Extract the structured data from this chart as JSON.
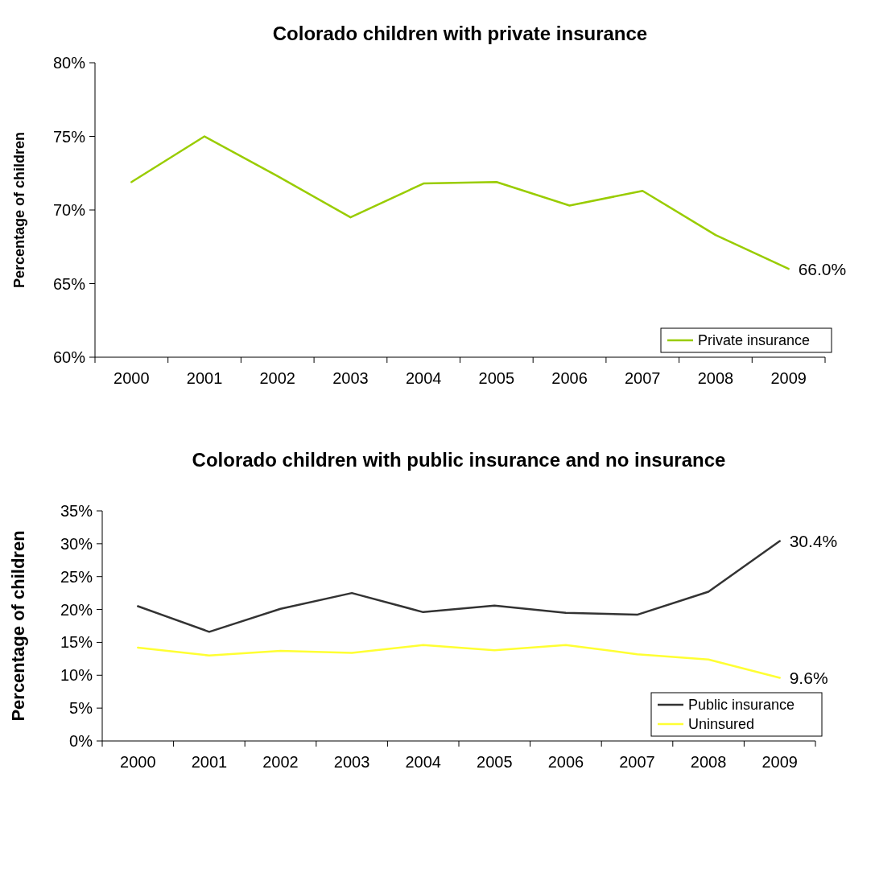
{
  "chart_data": [
    {
      "type": "line",
      "title": "Colorado children with private insurance",
      "ylabel": "Percentage of children",
      "categories": [
        "2000",
        "2001",
        "2002",
        "2003",
        "2004",
        "2005",
        "2006",
        "2007",
        "2008",
        "2009"
      ],
      "series": [
        {
          "name": "Private insurance",
          "color": "#99cc00",
          "values": [
            71.9,
            75.0,
            72.3,
            69.5,
            71.8,
            71.9,
            70.3,
            71.3,
            68.3,
            66.0
          ]
        }
      ],
      "ylim": [
        60,
        80
      ],
      "yticks": [
        {
          "value": 60,
          "label": "60%"
        },
        {
          "value": 65,
          "label": "65%"
        },
        {
          "value": 70,
          "label": "70%"
        },
        {
          "value": 75,
          "label": "75%"
        },
        {
          "value": 80,
          "label": "80%"
        }
      ],
      "annotations": [
        {
          "text": "66.0%",
          "x": "2009",
          "y": 66.0
        }
      ],
      "legend": "bottom right",
      "grid": false,
      "marker": "none"
    },
    {
      "type": "line",
      "title": "Colorado children with public insurance and no insurance",
      "ylabel": "Percentage of children",
      "categories": [
        "2000",
        "2001",
        "2002",
        "2003",
        "2004",
        "2005",
        "2006",
        "2007",
        "2008",
        "2009"
      ],
      "series": [
        {
          "name": "Public insurance",
          "color": "#333333",
          "values": [
            20.5,
            16.6,
            20.1,
            22.5,
            19.6,
            20.6,
            19.5,
            19.2,
            22.7,
            30.4
          ]
        },
        {
          "name": "Uninsured",
          "color": "#ffff33",
          "values": [
            14.2,
            13.0,
            13.7,
            13.4,
            14.6,
            13.8,
            14.6,
            13.2,
            12.4,
            9.6
          ]
        }
      ],
      "ylim": [
        0,
        35
      ],
      "yticks": [
        {
          "value": 0,
          "label": "0%"
        },
        {
          "value": 5,
          "label": "5%"
        },
        {
          "value": 10,
          "label": "10%"
        },
        {
          "value": 15,
          "label": "15%"
        },
        {
          "value": 20,
          "label": "20%"
        },
        {
          "value": 25,
          "label": "25%"
        },
        {
          "value": 30,
          "label": "30%"
        },
        {
          "value": 35,
          "label": "35%"
        }
      ],
      "annotations": [
        {
          "text": "30.4%",
          "x": "2009",
          "y": 30.4
        },
        {
          "text": "9.6%",
          "x": "2009",
          "y": 9.6
        }
      ],
      "legend": "bottom right",
      "grid": false,
      "marker": "none"
    }
  ]
}
